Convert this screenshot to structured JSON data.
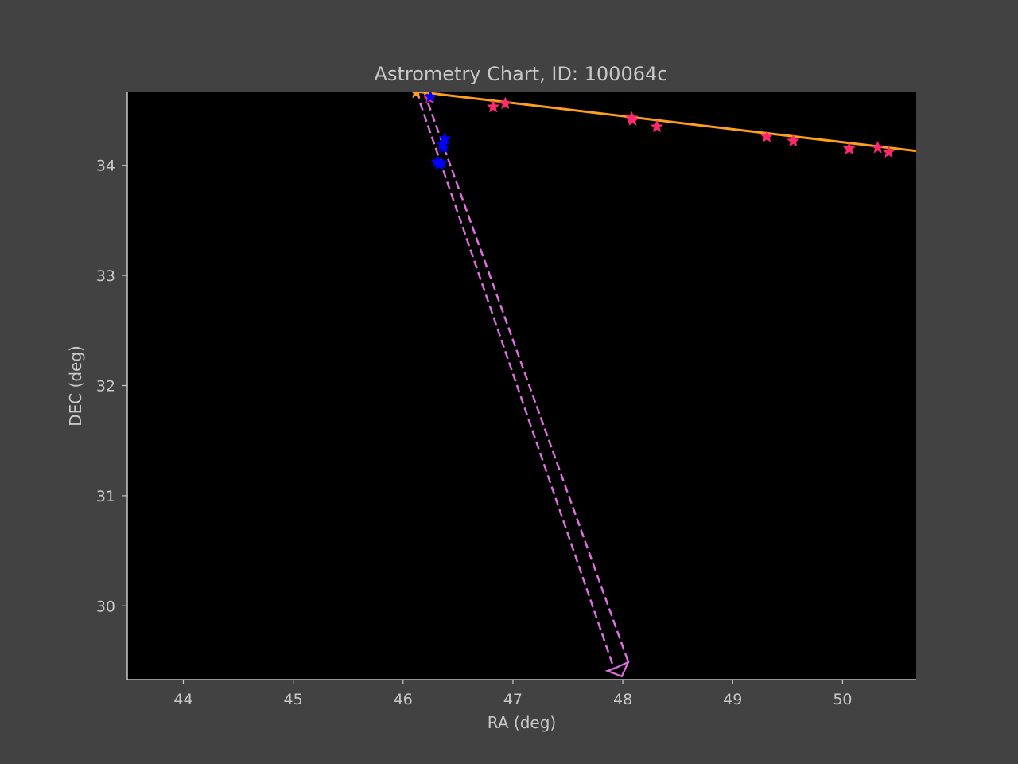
{
  "chart_data": {
    "type": "scatter",
    "title": "Astrometry Chart, ID: 100064c",
    "xlabel": "RA (deg)",
    "ylabel": "DEC (deg)",
    "xlim": [
      43.49,
      50.67
    ],
    "ylim": [
      29.33,
      34.67
    ],
    "xticks": [
      44,
      45,
      46,
      47,
      48,
      49,
      50
    ],
    "yticks": [
      30,
      31,
      32,
      33,
      34
    ],
    "grid": false,
    "colors": {
      "figure_bg": "#424242",
      "plot_bg": "#000000",
      "axis": "#c8c8c8",
      "fit_line": "#ff9f1a",
      "red_stars": "#ff2a6d",
      "blue_stars": "#0000ff",
      "dashed_track": "#e070e0"
    },
    "fit_line": {
      "points": [
        [
          46.12,
          34.67
        ],
        [
          50.67,
          34.13
        ]
      ]
    },
    "track": {
      "left_edge": [
        [
          46.12,
          34.67
        ],
        [
          47.92,
          29.43
        ]
      ],
      "right_edge": [
        [
          46.19,
          34.67
        ],
        [
          48.05,
          29.49
        ]
      ],
      "end_box": [
        [
          47.92,
          29.43
        ],
        [
          48.05,
          29.49
        ],
        [
          47.99,
          29.36
        ],
        [
          47.86,
          29.41
        ]
      ]
    },
    "series": [
      {
        "marker": "star",
        "color": "#ff2a6d",
        "points": [
          [
            46.24,
            34.61
          ],
          [
            46.82,
            34.53
          ],
          [
            46.93,
            34.56
          ],
          [
            48.08,
            34.43
          ],
          [
            48.09,
            34.41
          ],
          [
            48.31,
            34.35
          ],
          [
            49.31,
            34.26
          ],
          [
            49.55,
            34.22
          ],
          [
            50.06,
            34.15
          ],
          [
            50.32,
            34.16
          ],
          [
            50.42,
            34.12
          ]
        ]
      },
      {
        "marker": "star",
        "color": "#0000ff",
        "points": [
          [
            46.25,
            34.62
          ],
          [
            46.36,
            34.19
          ],
          [
            46.38,
            34.24
          ],
          [
            46.37,
            34.16
          ],
          [
            46.31,
            34.03
          ],
          [
            46.35,
            34.02
          ],
          [
            46.33,
            34.01
          ]
        ]
      },
      {
        "marker": "star",
        "color": "#ff9f1a",
        "points": [
          [
            46.12,
            34.66
          ]
        ]
      }
    ]
  }
}
